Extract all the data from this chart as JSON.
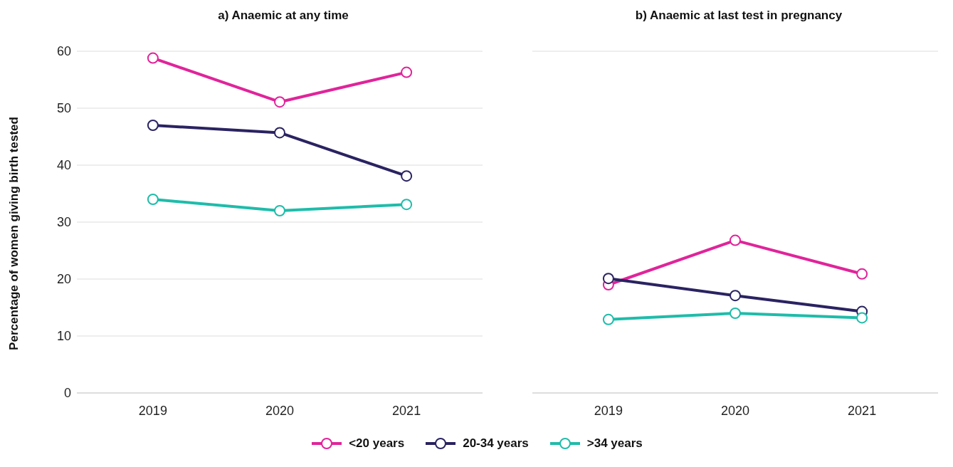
{
  "chart_data": [
    {
      "type": "line",
      "title": "a) Anaemic at any time",
      "ylabel": "Percentage of women giving birth tested",
      "categories": [
        "2019",
        "2020",
        "2021"
      ],
      "series": [
        {
          "name": "<20 years",
          "color": "#e0249a",
          "values": [
            58.8,
            51.1,
            56.3
          ]
        },
        {
          "name": "20-34 years",
          "color": "#2a2361",
          "values": [
            47.0,
            45.7,
            38.1
          ]
        },
        {
          "name": ">34 years",
          "color": "#1fbcaa",
          "values": [
            34.0,
            32.0,
            33.1
          ]
        }
      ],
      "ylim": [
        0,
        60
      ],
      "yticks": [
        0,
        10,
        20,
        30,
        40,
        50,
        60
      ],
      "grid": "y",
      "marker": "circle",
      "line_style": "solid",
      "legend": "bottom"
    },
    {
      "type": "line",
      "title": "b) Anaemic at last test in pregnancy",
      "categories": [
        "2019",
        "2020",
        "2021"
      ],
      "series": [
        {
          "name": "<20 years",
          "color": "#e0249a",
          "values": [
            19.0,
            26.8,
            20.9
          ]
        },
        {
          "name": "20-34 years",
          "color": "#2a2361",
          "values": [
            20.1,
            17.1,
            14.3
          ]
        },
        {
          "name": ">34 years",
          "color": "#1fbcaa",
          "values": [
            12.9,
            14.0,
            13.2
          ]
        }
      ],
      "ylim": [
        0,
        60
      ],
      "yticks": [
        0,
        10,
        20,
        30,
        40,
        50,
        60
      ],
      "grid": "y",
      "marker": "circle",
      "line_style": "solid",
      "tick_labels": "x"
    }
  ]
}
